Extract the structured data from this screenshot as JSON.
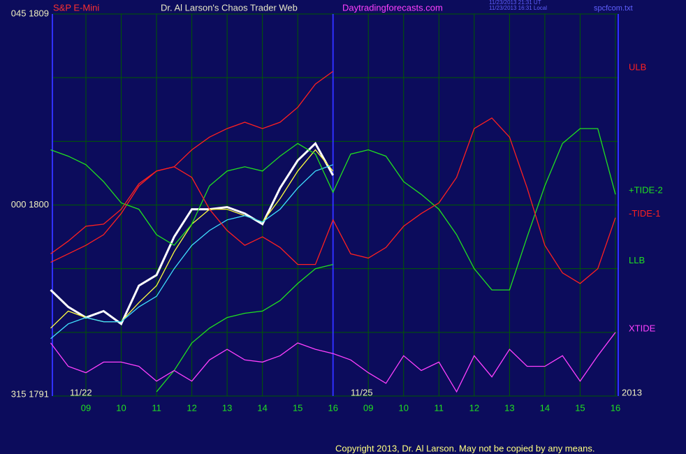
{
  "chart_data": {
    "type": "line",
    "title": "Dr. Al Larson's Chaos Trader Web",
    "site": "Daytradingforecasts.com",
    "timestamps": [
      "11/23/2013 21:31 UT",
      "11/23/2013 16:31 Local"
    ],
    "file": "spcfcom.txt",
    "copyright": "Copyright 2013, Dr. Al Larson. May not be copied by any means.",
    "date_labels": [
      "11/22",
      "11/25",
      "2013"
    ],
    "x": [
      0,
      0.5,
      1,
      1.5,
      2,
      2.5,
      3,
      3.5,
      4,
      4.5,
      5,
      5.5,
      6,
      6.5,
      7,
      7.5,
      8,
      8.5,
      9,
      9.5,
      10,
      10.5,
      11,
      11.5,
      12,
      12.5,
      13,
      13.5,
      14,
      14.5,
      15,
      15.5,
      16
    ],
    "xlim": [
      0.05,
      16.08
    ],
    "xticks": [
      {
        "value": 1,
        "label": "09"
      },
      {
        "value": 2,
        "label": "10"
      },
      {
        "value": 3,
        "label": "11"
      },
      {
        "value": 4,
        "label": "12"
      },
      {
        "value": 5,
        "label": "13"
      },
      {
        "value": 6,
        "label": "14"
      },
      {
        "value": 7,
        "label": "15"
      },
      {
        "value": 8,
        "label": "16"
      },
      {
        "value": 9,
        "label": "09"
      },
      {
        "value": 10,
        "label": "10"
      },
      {
        "value": 11,
        "label": "11"
      },
      {
        "value": 12,
        "label": "12"
      },
      {
        "value": 13,
        "label": "13"
      },
      {
        "value": 14,
        "label": "14"
      },
      {
        "value": 15,
        "label": "15"
      },
      {
        "value": 16,
        "label": "16"
      }
    ],
    "ylim": [
      1791,
      1809
    ],
    "yticks": [
      {
        "value": 1809,
        "label": "045  1809"
      },
      {
        "value": 1800,
        "label": "000  1800"
      },
      {
        "value": 1791,
        "label": "315  1791"
      }
    ],
    "ygrid": [
      1806,
      1803,
      1797,
      1794
    ],
    "divider": 8,
    "grid": true,
    "series": [
      {
        "name": "S&P E-Mini",
        "color": "#ffffff",
        "values": [
          1796.0,
          1795.2,
          1794.7,
          1795.0,
          1794.4,
          1796.2,
          1796.7,
          1798.5,
          1799.8,
          1799.8,
          1799.9,
          1799.6,
          1799.1,
          1800.8,
          1802.1,
          1802.9,
          1801.4,
          null,
          null,
          null,
          null,
          null,
          null,
          null,
          null,
          null,
          null,
          null,
          null,
          null,
          null,
          null,
          null
        ]
      },
      {
        "color": "#ffff40",
        "values": [
          1794.2,
          1795.0,
          1794.7,
          1794.5,
          1794.5,
          1795.4,
          1796.2,
          1797.8,
          1799.1,
          1799.8,
          1799.8,
          1799.5,
          1799.2,
          1800.3,
          1801.6,
          1802.6,
          1801.6,
          null,
          null,
          null,
          null,
          null,
          null,
          null,
          null,
          null,
          null,
          null,
          null,
          null,
          null,
          null,
          null
        ]
      },
      {
        "color": "#40e0ff",
        "values": [
          1793.7,
          1794.4,
          1794.7,
          1794.5,
          1794.5,
          1795.2,
          1795.7,
          1797.0,
          1798.1,
          1798.8,
          1799.3,
          1799.5,
          1799.2,
          1799.8,
          1800.8,
          1801.6,
          1801.9,
          null,
          null,
          null,
          null,
          null,
          null,
          null,
          null,
          null,
          null,
          null,
          null,
          null,
          null,
          null,
          null
        ]
      },
      {
        "name": "ULB",
        "color": "#ff2020",
        "values": [
          1797.3,
          1797.7,
          1798.1,
          1798.6,
          1799.6,
          1800.9,
          1801.6,
          1801.8,
          1802.6,
          1803.2,
          1803.6,
          1803.9,
          1803.6,
          1803.9,
          1804.6,
          1805.7,
          1806.3,
          null,
          null,
          null,
          null,
          null,
          null,
          null,
          null,
          null,
          null,
          null,
          null,
          null,
          null,
          null,
          null
        ]
      },
      {
        "name": "LLB",
        "color": "#20e020",
        "values": [
          null,
          null,
          null,
          null,
          null,
          null,
          1791.2,
          1792.2,
          1793.5,
          1794.2,
          1794.7,
          1794.9,
          1795.0,
          1795.5,
          1796.3,
          1797.0,
          1797.2,
          null,
          null,
          null,
          null,
          null,
          null,
          null,
          null,
          null,
          null,
          null,
          null,
          null,
          null,
          null,
          null
        ]
      },
      {
        "name": "+TIDE-2",
        "color": "#20e020",
        "values": [
          1802.6,
          1802.3,
          1801.9,
          1801.1,
          1800.1,
          1799.8,
          1798.6,
          1798.1,
          1799.1,
          1800.9,
          1801.6,
          1801.8,
          1801.6,
          1802.3,
          1802.9,
          1802.4,
          1800.6,
          1802.4,
          1802.6,
          1802.3,
          1801.1,
          1800.5,
          1799.8,
          1798.6,
          1797.0,
          1796.0,
          1796.0,
          1798.5,
          1800.9,
          1802.9,
          1803.6,
          1803.6,
          1800.5
        ]
      },
      {
        "name": "-TIDE-1",
        "color": "#ff2020",
        "values": [
          1797.7,
          1798.3,
          1799.0,
          1799.1,
          1799.8,
          1801.0,
          1801.6,
          1801.8,
          1801.3,
          1799.8,
          1798.8,
          1798.1,
          1798.5,
          1798.0,
          1797.2,
          1797.2,
          1799.3,
          1797.7,
          1797.5,
          1798.0,
          1799.0,
          1799.6,
          1800.1,
          1801.3,
          1803.6,
          1804.1,
          1803.2,
          1800.8,
          1798.1,
          1796.8,
          1796.3,
          1797.0,
          1799.4
        ]
      },
      {
        "name": "XTIDE",
        "color": "#ff40ff",
        "values": [
          1793.5,
          1792.4,
          1792.1,
          1792.6,
          1792.6,
          1792.4,
          1791.7,
          1792.2,
          1791.7,
          1792.7,
          1793.2,
          1792.7,
          1792.6,
          1792.9,
          1793.5,
          1793.2,
          1793.0,
          1792.7,
          1792.1,
          1791.6,
          1792.9,
          1792.2,
          1792.6,
          1791.2,
          1792.9,
          1791.9,
          1793.2,
          1792.4,
          1792.4,
          1792.9,
          1791.7,
          1792.9,
          1794.0
        ]
      }
    ]
  }
}
